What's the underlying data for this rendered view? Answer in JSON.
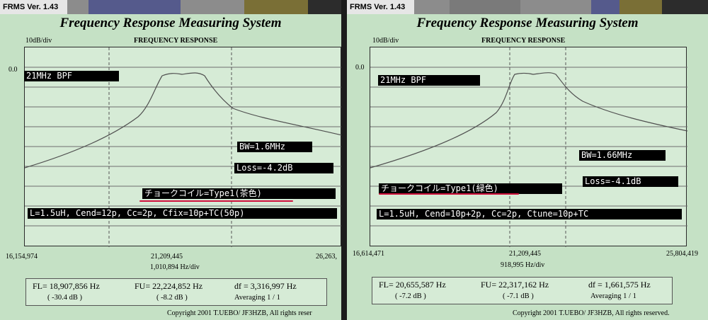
{
  "colors": {
    "panel_bg": "#c5e1c5",
    "plot_bg": "#d6ebd6",
    "curve": "#505050",
    "underline": "#d0103c",
    "titlebar_segments": [
      "#8c8c8c",
      "#555a8c",
      "#8c8c8c",
      "#7a6f36",
      "#2c2c2c"
    ]
  },
  "left": {
    "window_title": "FRMS  Ver. 1.43",
    "app_title": "Frequency Response Measuring System",
    "scale_label": "10dB/div",
    "chart_title": "FREQUENCY RESPONSE",
    "y_ref": "0.0",
    "labels": {
      "filter": "21MHz BPF",
      "bw": "BW=1.6MHz",
      "loss": "Loss=-4.2dB",
      "coil": "チョークコイル=Type1(茶色)",
      "params": "L=1.5uH, Cend=12p, Cc=2p, Cfix=10p+TC(50p)"
    },
    "x_left": "16,154,974",
    "x_center": "21,209,445",
    "x_right": "26,263,",
    "hz_div": "1,010,894  Hz/div",
    "fl": "FL= 18,907,856  Hz",
    "fl_db": "( -30.4 dB )",
    "fu": "FU= 22,224,852  Hz",
    "fu_db": "( -8.2 dB )",
    "df": "df = 3,316,997  Hz",
    "averaging": "Averaging   1 / 1",
    "copyright": "Copyright 2001 T.UEBO/ JF3HZB, All rights reser"
  },
  "right": {
    "window_title": "FRMS  Ver. 1.43",
    "app_title": "Frequency Response Measuring System",
    "scale_label": "10dB/div",
    "chart_title": "FREQUENCY RESPONSE",
    "y_ref": "0.0",
    "labels": {
      "filter": "21MHz BPF",
      "bw": "BW=1.66MHz",
      "loss": "Loss=-4.1dB",
      "coil": "チョークコイル=Type1(緑色)",
      "params": "L=1.5uH, Cend=10p+2p, Cc=2p, Ctune=10p+TC"
    },
    "x_left": "16,614,471",
    "x_center": "21,209,445",
    "x_right": "25,804,419",
    "hz_div": "918,995  Hz/div",
    "fl": "FL= 20,655,587  Hz",
    "fl_db": "( -7.2 dB )",
    "fu": "FU= 22,317,162  Hz",
    "fu_db": "( -7.1 dB )",
    "df": "df = 1,661,575  Hz",
    "averaging": "Averaging   1 / 1",
    "copyright": "Copyright 2001 T.UEBO/ JF3HZB, All rights reserved."
  }
}
